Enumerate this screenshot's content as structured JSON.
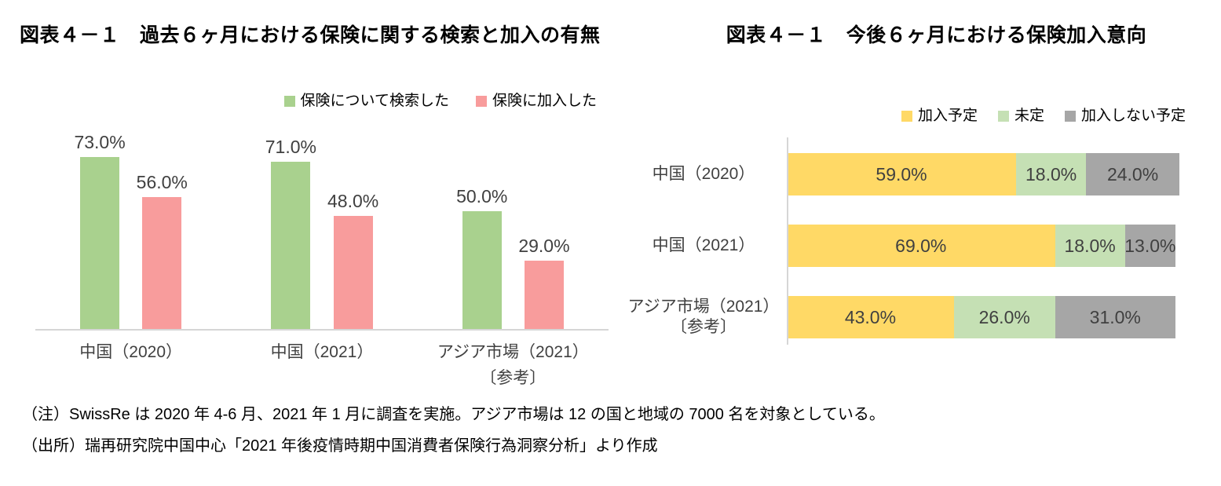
{
  "page": {
    "background": "#FFFFFF"
  },
  "notes": {
    "note": "（注）SwissRe は 2020 年 4-6 月、2021 年 1 月に調査を実施。アジア市場は 12 の国と地域の 7000 名を対象としている。",
    "source": "（出所）瑞再研究院中国中心「2021 年後疫情時期中国消費者保険行為洞察分析」より作成"
  },
  "chart_data": [
    {
      "type": "bar",
      "title": "図表４－１　過去６ヶ月における保険に関する検索と加入の有無",
      "categories": [
        "中国（2020）",
        "中国（2021）",
        "アジア市場（2021）"
      ],
      "category_subnotes": [
        "",
        "",
        "〔参考〕"
      ],
      "series": [
        {
          "name": "保険について検索した",
          "color": "#A9D18E",
          "values": [
            73.0,
            71.0,
            50.0
          ],
          "labels": [
            "73.0%",
            "71.0%",
            "50.0%"
          ]
        },
        {
          "name": "保険に加入した",
          "color": "#F89C9C",
          "values": [
            56.0,
            48.0,
            29.0
          ],
          "labels": [
            "56.0%",
            "48.0%",
            "29.0%"
          ]
        }
      ],
      "ylim": [
        0,
        90
      ],
      "grid": false,
      "legend_position": "top",
      "axis_color": "#D6D6D6",
      "value_label_color": "#404040"
    },
    {
      "type": "bar-horizontal-stacked",
      "title": "図表４－１　今後６ヶ月における保険加入意向",
      "categories": [
        "中国（2020）",
        "中国（2021）",
        "アジア市場（2021）"
      ],
      "category_subnotes": [
        "",
        "",
        "〔参考〕"
      ],
      "series": [
        {
          "name": "加入予定",
          "color": "#FFD966",
          "values": [
            59.0,
            69.0,
            43.0
          ],
          "labels": [
            "59.0%",
            "69.0%",
            "43.0%"
          ]
        },
        {
          "name": "未定",
          "color": "#C5E0B4",
          "values": [
            18.0,
            18.0,
            26.0
          ],
          "labels": [
            "18.0%",
            "18.0%",
            "26.0%"
          ]
        },
        {
          "name": "加入しない予定",
          "color": "#A6A6A6",
          "values": [
            24.0,
            13.0,
            31.0
          ],
          "labels": [
            "24.0%",
            "13.0%",
            "31.0%"
          ]
        }
      ],
      "xlim": [
        0,
        101
      ],
      "grid": false,
      "legend_position": "top-right",
      "axis_color": "#D6D6D6",
      "value_label_color": "#404040"
    }
  ]
}
